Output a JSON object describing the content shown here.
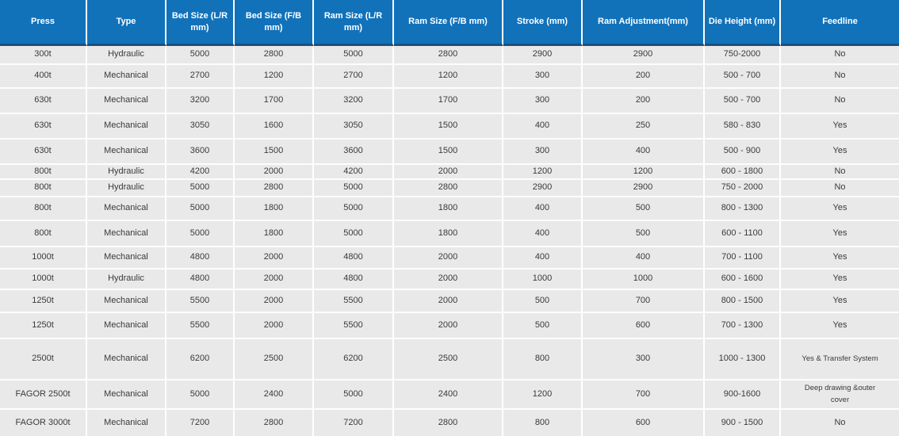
{
  "colors": {
    "header_bg": "#1172ba",
    "header_text": "#ffffff",
    "header_underline": "#1f4e79",
    "row_bg": "#e9e9e9",
    "separator": "#ffffff",
    "body_text": "#3a3a3a"
  },
  "table": {
    "columns": [
      "Press",
      "Type",
      "Bed Size (L/R mm)",
      "Bed Size (F/B mm)",
      "Ram Size (L/R mm)",
      "Ram Size (F/B mm)",
      "Stroke (mm)",
      "Ram Adjustment(mm)",
      "Die Height (mm)",
      "Feedline"
    ],
    "rows": [
      [
        "300t",
        "Hydraulic",
        "5000",
        "2800",
        "5000",
        "2800",
        "2900",
        "2900",
        "750-2000",
        "No"
      ],
      [
        "400t",
        "Mechanical",
        "2700",
        "1200",
        "2700",
        "1200",
        "300",
        "200",
        "500 - 700",
        "No"
      ],
      [
        "630t",
        "Mechanical",
        "3200",
        "1700",
        "3200",
        "1700",
        "300",
        "200",
        "500 - 700",
        "No"
      ],
      [
        "630t",
        "Mechanical",
        "3050",
        "1600",
        "3050",
        "1500",
        "400",
        "250",
        "580 - 830",
        "Yes"
      ],
      [
        "630t",
        "Mechanical",
        "3600",
        "1500",
        "3600",
        "1500",
        "300",
        "400",
        "500 - 900",
        "Yes"
      ],
      [
        "800t",
        "Hydraulic",
        "4200",
        "2000",
        "4200",
        "2000",
        "1200",
        "1200",
        "600 - 1800",
        "No"
      ],
      [
        "800t",
        "Hydraulic",
        "5000",
        "2800",
        "5000",
        "2800",
        "2900",
        "2900",
        "750 - 2000",
        "No"
      ],
      [
        "800t",
        "Mechanical",
        "5000",
        "1800",
        "5000",
        "1800",
        "400",
        "500",
        "800 - 1300",
        "Yes"
      ],
      [
        "800t",
        "Mechanical",
        "5000",
        "1800",
        "5000",
        "1800",
        "400",
        "500",
        "600 - 1100",
        "Yes"
      ],
      [
        "1000t",
        "Mechanical",
        "4800",
        "2000",
        "4800",
        "2000",
        "400",
        "400",
        "700 - 1100",
        "Yes"
      ],
      [
        "1000t",
        "Hydraulic",
        "4800",
        "2000",
        "4800",
        "2000",
        "1000",
        "1000",
        "600 - 1600",
        "Yes"
      ],
      [
        "1250t",
        "Mechanical",
        "5500",
        "2000",
        "5500",
        "2000",
        "500",
        "700",
        "800 - 1500",
        "Yes"
      ],
      [
        "1250t",
        "Mechanical",
        "5500",
        "2000",
        "5500",
        "2000",
        "500",
        "600",
        "700 - 1300",
        "Yes"
      ],
      [
        "2500t",
        "Mechanical",
        "6200",
        "2500",
        "6200",
        "2500",
        "800",
        "300",
        "1000 - 1300",
        "Yes & Transfer System"
      ],
      [
        "FAGOR 2500t",
        "Mechanical",
        "5000",
        "2400",
        "5000",
        "2400",
        "1200",
        "700",
        "900-1600",
        "Deep drawing &outer cover"
      ],
      [
        "FAGOR 3000t",
        "Mechanical",
        "7200",
        "2800",
        "7200",
        "2800",
        "800",
        "600",
        "900 - 1500",
        "No"
      ]
    ]
  }
}
